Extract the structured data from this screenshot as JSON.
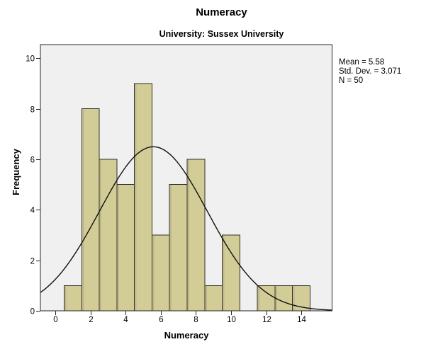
{
  "chart_data": {
    "type": "bar",
    "subtype": "histogram",
    "title": "Numeracy",
    "subtitle": "University: Sussex University",
    "xlabel": "Numeracy",
    "ylabel": "Frequency",
    "bin_width": 1,
    "bin_centers": [
      1,
      2,
      3,
      4,
      5,
      6,
      7,
      8,
      9,
      10,
      11,
      12,
      13,
      14
    ],
    "frequencies": [
      1,
      8,
      6,
      5,
      9,
      3,
      5,
      6,
      1,
      3,
      0,
      1,
      1,
      1
    ],
    "x_ticks": [
      0,
      2,
      4,
      6,
      8,
      10,
      12,
      14
    ],
    "y_ticks": [
      0,
      2,
      4,
      6,
      8,
      10
    ],
    "xlim": [
      -0.85,
      15.75
    ],
    "ylim": [
      0,
      10.54
    ],
    "grid": false,
    "legend": false,
    "normal_curve": {
      "mean": 5.58,
      "std_dev": 3.071,
      "n": 50
    },
    "stats_lines": [
      "Mean = 5.58",
      "Std. Dev. = 3.071",
      "N = 50"
    ],
    "colors": {
      "plot_bg": "#f0f0f0",
      "frame": "#262626",
      "bar_fill": "#d2cd97",
      "bar_edge": "#30302a",
      "bar_shade": "#a9a57b",
      "curve": "#111111",
      "tick": "#262626",
      "text": "#000000"
    }
  }
}
